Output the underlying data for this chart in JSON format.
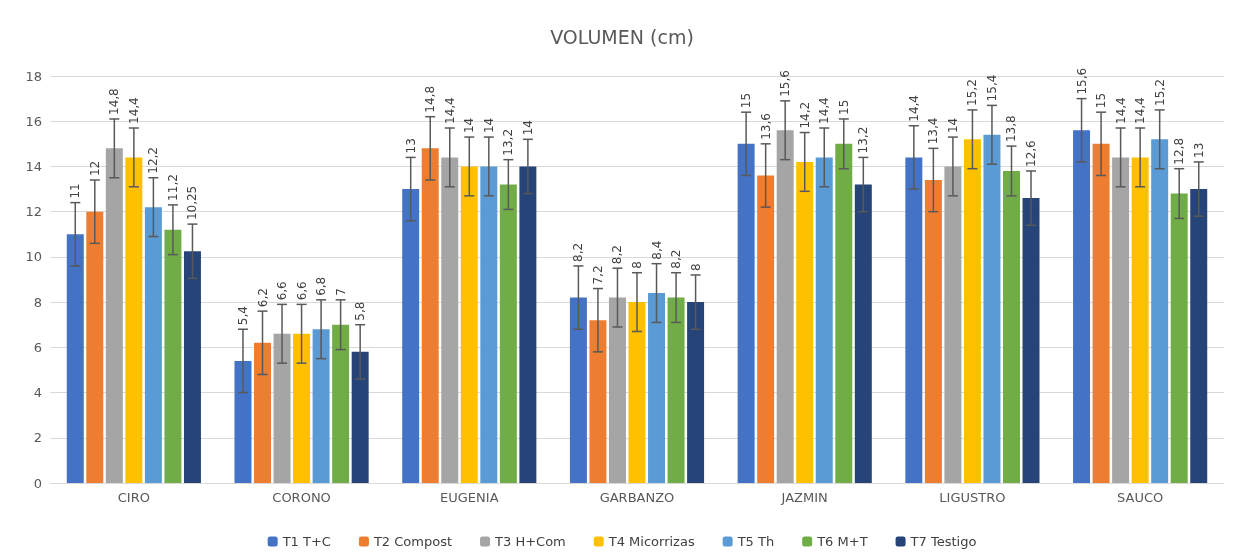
{
  "chart_data": {
    "type": "bar",
    "title": "VOLUMEN (cm)",
    "categories": [
      "CIRO",
      "CORONO",
      "EUGENIA",
      "GARBANZO",
      "JAZMIN",
      "LIGUSTRO",
      "SAUCO"
    ],
    "ylim": [
      0,
      18
    ],
    "yticks": [
      0,
      2,
      4,
      6,
      8,
      10,
      12,
      14,
      16,
      18
    ],
    "grid": "y",
    "legend": "bottom",
    "series": [
      {
        "name": "T1 T+C",
        "color": "#4472c4",
        "values": [
          11,
          5.4,
          13,
          8.2,
          15,
          14.4,
          15.6
        ],
        "value_labels": [
          "11",
          "5,4",
          "13",
          "8,2",
          "15",
          "14,4",
          "15,6"
        ],
        "errors": [
          1.4,
          1.4,
          1.4,
          1.4,
          1.4,
          1.4,
          1.4
        ]
      },
      {
        "name": "T2 Compost",
        "color": "#ed7d31",
        "values": [
          12,
          6.2,
          14.8,
          7.2,
          13.6,
          13.4,
          15
        ],
        "value_labels": [
          "12",
          "6,2",
          "14,8",
          "7,2",
          "13,6",
          "13,4",
          "15"
        ],
        "errors": [
          1.4,
          1.4,
          1.4,
          1.4,
          1.4,
          1.4,
          1.4
        ]
      },
      {
        "name": "T3 H+Com",
        "color": "#a5a5a5",
        "values": [
          14.8,
          6.6,
          14.4,
          8.2,
          15.6,
          14,
          14.4
        ],
        "value_labels": [
          "14,8",
          "6,6",
          "14,4",
          "8,2",
          "15,6",
          "14",
          "14,4"
        ],
        "errors": [
          1.3,
          1.3,
          1.3,
          1.3,
          1.3,
          1.3,
          1.3
        ]
      },
      {
        "name": "T4 Micorrizas",
        "color": "#ffc000",
        "values": [
          14.4,
          6.6,
          14,
          8,
          14.2,
          15.2,
          14.4
        ],
        "value_labels": [
          "14,4",
          "6,6",
          "14",
          "8",
          "14,2",
          "15,2",
          "14,4"
        ],
        "errors": [
          1.3,
          1.3,
          1.3,
          1.3,
          1.3,
          1.3,
          1.3
        ]
      },
      {
        "name": "T5 Th",
        "color": "#5b9bd5",
        "values": [
          12.2,
          6.8,
          14,
          8.4,
          14.4,
          15.4,
          15.2
        ],
        "value_labels": [
          "12,2",
          "6,8",
          "14",
          "8,4",
          "14,4",
          "15,4",
          "15,2"
        ],
        "errors": [
          1.3,
          1.3,
          1.3,
          1.3,
          1.3,
          1.3,
          1.3
        ]
      },
      {
        "name": "T6 M+T",
        "color": "#70ad47",
        "values": [
          11.2,
          7,
          13.2,
          8.2,
          15,
          13.8,
          12.8
        ],
        "value_labels": [
          "11,2",
          "7",
          "13,2",
          "8,2",
          "15",
          "13,8",
          "12,8"
        ],
        "errors": [
          1.1,
          1.1,
          1.1,
          1.1,
          1.1,
          1.1,
          1.1
        ]
      },
      {
        "name": "T7 Testigo",
        "color": "#264478",
        "values": [
          10.25,
          5.8,
          14,
          8,
          13.2,
          12.6,
          13
        ],
        "value_labels": [
          "10,25",
          "5,8",
          "14",
          "8",
          "13,2",
          "12,6",
          "13"
        ],
        "errors": [
          1.2,
          1.2,
          1.2,
          1.2,
          1.2,
          1.2,
          1.2
        ]
      }
    ]
  }
}
